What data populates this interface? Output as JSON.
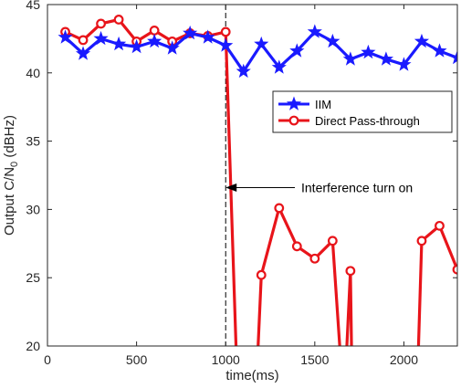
{
  "chart_data": {
    "type": "line",
    "xlabel": "time(ms)",
    "ylabel": "Output C/N",
    "ylabel_sub": "0",
    "ylabel_unit": " (dBHz)",
    "xlim": [
      0,
      2300
    ],
    "ylim": [
      20,
      45
    ],
    "xticks": [
      0,
      500,
      1000,
      1500,
      2000
    ],
    "yticks": [
      20,
      25,
      30,
      35,
      40,
      45
    ],
    "grid": false,
    "legend_position": "upper-right",
    "series": [
      {
        "name": "IIM",
        "color": "#1a1aff",
        "marker": "star",
        "x": [
          100,
          200,
          300,
          400,
          500,
          600,
          700,
          800,
          900,
          1000,
          1100,
          1200,
          1300,
          1400,
          1500,
          1600,
          1700,
          1800,
          1900,
          2000,
          2100,
          2200,
          2300
        ],
        "y": [
          42.6,
          41.4,
          42.5,
          42.1,
          41.9,
          42.3,
          41.8,
          42.9,
          42.6,
          42.0,
          40.1,
          42.1,
          40.4,
          41.6,
          43.0,
          42.3,
          41.0,
          41.5,
          41.0,
          40.6,
          42.3,
          41.6,
          41.1
        ]
      },
      {
        "name": "Direct Pass-through",
        "color": "#e8141a",
        "marker": "circle",
        "segments": [
          {
            "x": [
              100,
              200,
              300,
              400,
              500,
              600,
              700,
              800,
              900,
              1000,
              1058
            ],
            "y": [
              43.0,
              42.4,
              43.6,
              43.9,
              42.3,
              43.1,
              42.3,
              42.9,
              42.7,
              43.0,
              20.0
            ]
          },
          {
            "x": [
              1182,
              1200,
              1300,
              1400,
              1500,
              1600,
              1640
            ],
            "y": [
              20.0,
              25.2,
              30.1,
              27.3,
              26.4,
              27.7,
              20.0
            ]
          },
          {
            "x": [
              1680,
              1700,
              1706
            ],
            "y": [
              20.0,
              25.5,
              20.0
            ]
          },
          {
            "x": [
              2082,
              2100,
              2200,
              2300
            ],
            "y": [
              20.0,
              27.7,
              28.8,
              25.6
            ]
          }
        ],
        "markers": {
          "x": [
            100,
            200,
            300,
            400,
            500,
            600,
            700,
            800,
            900,
            1000,
            1200,
            1300,
            1400,
            1500,
            1600,
            1700,
            2100,
            2200,
            2300
          ],
          "y": [
            43.0,
            42.4,
            43.6,
            43.9,
            42.3,
            43.1,
            42.3,
            42.9,
            42.7,
            43.0,
            25.2,
            30.1,
            27.3,
            26.4,
            27.7,
            25.5,
            27.7,
            28.8,
            25.6
          ]
        }
      }
    ],
    "vline_x": 1000,
    "annotation": {
      "text": "Interference turn on",
      "arrow_to": [
        1000,
        31.6
      ]
    }
  }
}
